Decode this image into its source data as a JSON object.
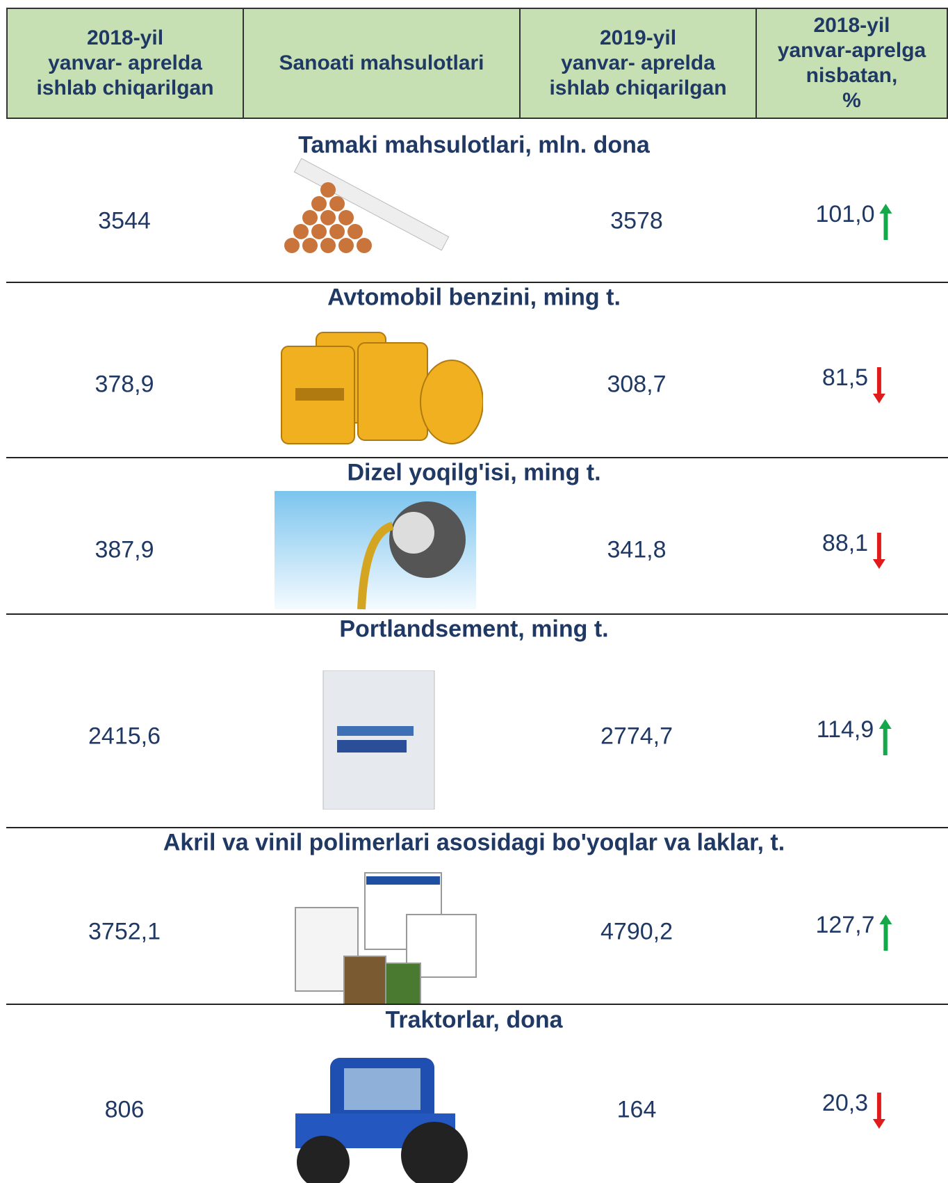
{
  "header": {
    "columns": [
      "2018-yil\nyanvar- aprelda\nishlab chiqarilgan",
      "Sanoati mahsulotlari",
      "2019-yil\nyanvar- aprelda\nishlab chiqarilgan",
      "2018-yil\nyanvar-aprelga\nnisbatan,\n%"
    ]
  },
  "table": {
    "rows": [
      {
        "title": "Tamaki mahsulotlari, mln. dona",
        "v2018": "3544",
        "v2019": "3578",
        "percent": "101,0"
      },
      {
        "title": "Avtomobil benzini, ming t.",
        "v2018": "378,9",
        "v2019": "308,7",
        "percent": "81,5"
      },
      {
        "title": "Dizel yoqilg'isi, ming t.",
        "v2018": "387,9",
        "v2019": "341,8",
        "percent": "88,1"
      },
      {
        "title": "Portlandsement, ming t.",
        "v2018": "2415,6",
        "v2019": "2774,7",
        "percent": "114,9"
      },
      {
        "title": "Akril va vinil polimerlari asosidagi bo'yoqlar va laklar, t.",
        "v2018": "3752,1",
        "v2019": "4790,2",
        "percent": "127,7"
      },
      {
        "title": "Traktorlar, dona",
        "v2018": "806",
        "v2019": "164",
        "percent": "20,3"
      }
    ]
  }
}
